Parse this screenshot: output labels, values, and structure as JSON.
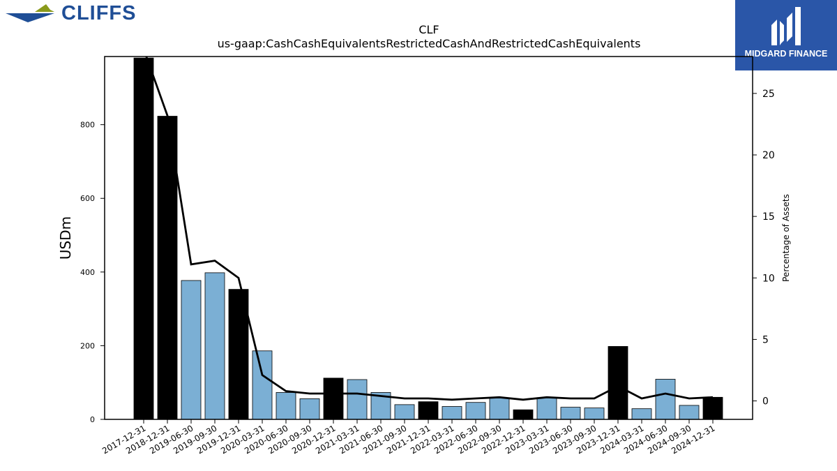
{
  "branding": {
    "left_logo_text": "CLIFFS",
    "right_logo_text": "MIDGARD FINANCE",
    "brand_blue": "#1f4e96",
    "brand_olive": "#8a9a1a",
    "panel_blue": "#2a56a8"
  },
  "chart_data": {
    "type": "bar",
    "title": "CLF",
    "subtitle": "us-gaap:CashCashEquivalentsRestrictedCashAndRestrictedCashEquivalents",
    "ylabel": "USDm",
    "y2label": "Percentage of Assets",
    "ylim": [
      0,
      985
    ],
    "y2lim": [
      -1.5,
      28
    ],
    "yticks": [
      0,
      200,
      400,
      600,
      800
    ],
    "y2ticks": [
      0,
      5,
      10,
      15,
      20,
      25
    ],
    "grid": false,
    "colors": {
      "annual": "#000000",
      "quarterly": "#7bafd4",
      "line": "#000000"
    },
    "categories": [
      "2017-12-31",
      "2018-12-31",
      "2019-06-30",
      "2019-09-30",
      "2019-12-31",
      "2020-03-31",
      "2020-06-30",
      "2020-09-30",
      "2020-12-31",
      "2021-03-31",
      "2021-06-30",
      "2021-09-30",
      "2021-12-31",
      "2022-03-31",
      "2022-06-30",
      "2022-09-30",
      "2022-12-31",
      "2023-03-31",
      "2023-06-30",
      "2023-09-30",
      "2023-12-31",
      "2024-03-31",
      "2024-06-30",
      "2024-09-30",
      "2024-12-31"
    ],
    "bar_kind": [
      "annual",
      "annual",
      "quarterly",
      "quarterly",
      "annual",
      "quarterly",
      "quarterly",
      "quarterly",
      "annual",
      "quarterly",
      "quarterly",
      "quarterly",
      "annual",
      "quarterly",
      "quarterly",
      "quarterly",
      "annual",
      "quarterly",
      "quarterly",
      "quarterly",
      "annual",
      "quarterly",
      "quarterly",
      "quarterly",
      "annual"
    ],
    "series": [
      {
        "values": [
          981,
          823,
          377,
          398,
          353,
          186,
          73,
          56,
          112,
          108,
          73,
          40,
          48,
          35,
          46,
          58,
          26,
          59,
          33,
          31,
          198,
          29,
          109,
          38,
          60
        ]
      },
      {
        "axis": "right",
        "type": "line",
        "values": [
          28.6,
          23.2,
          11.1,
          11.4,
          10.0,
          2.1,
          0.8,
          0.6,
          0.6,
          0.6,
          0.4,
          0.2,
          0.2,
          0.1,
          0.2,
          0.3,
          0.1,
          0.3,
          0.2,
          0.2,
          1.2,
          0.2,
          0.6,
          0.2,
          0.3
        ]
      }
    ]
  }
}
